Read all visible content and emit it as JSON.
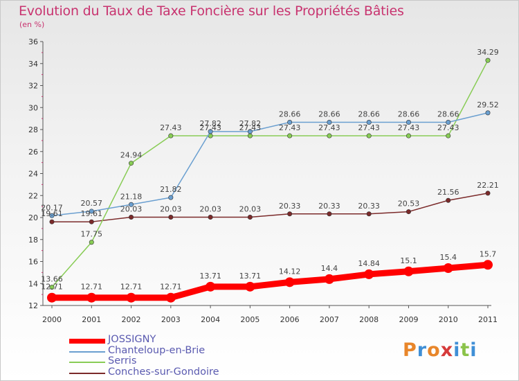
{
  "header": {
    "title": "Evolution du Taux de Taxe Foncière sur les Propriétés Bâties",
    "unit": "(en %)"
  },
  "logo": {
    "text": "Proxiti",
    "colors": [
      "#e8862a",
      "#3f8fd6",
      "#e8862a",
      "#d63a3a",
      "#3f8fd6",
      "#8bc34a",
      "#3f8fd6"
    ]
  },
  "chart_data": {
    "type": "line",
    "title": "Evolution du Taux de Taxe Foncière sur les Propriétés Bâties",
    "ylabel": "(en %)",
    "xlabel": "",
    "ylim": [
      12,
      36
    ],
    "yticks": [
      12,
      14,
      16,
      18,
      20,
      22,
      24,
      26,
      28,
      30,
      32,
      34,
      36
    ],
    "grid": false,
    "legend_position": "bottom-left",
    "x": [
      "2000",
      "2001",
      "2002",
      "2003",
      "2004",
      "2005",
      "2006",
      "2007",
      "2008",
      "2009",
      "2010",
      "2011"
    ],
    "series": [
      {
        "name": "JOSSIGNY",
        "color": "#ff0000",
        "thick": true,
        "values": [
          12.71,
          12.71,
          12.71,
          12.71,
          13.71,
          13.71,
          14.12,
          14.4,
          14.84,
          15.1,
          15.4,
          15.7
        ],
        "labels": [
          "12.71",
          "12.71",
          "12.71",
          "12.71",
          "13.71",
          "13.71",
          "14.12",
          "14.4",
          "14.84",
          "15.1",
          "15.4",
          "15.7"
        ]
      },
      {
        "name": "Chanteloup-en-Brie",
        "color": "#6a9fd0",
        "thick": false,
        "values": [
          20.17,
          20.57,
          21.18,
          21.82,
          27.82,
          27.82,
          28.66,
          28.66,
          28.66,
          28.66,
          28.66,
          29.52
        ],
        "labels": [
          "20.17",
          "20.57",
          "21.18",
          "21.82",
          "27.82",
          "27.82",
          "28.66",
          "28.66",
          "28.66",
          "28.66",
          "28.66",
          "29.52"
        ]
      },
      {
        "name": "Serris",
        "color": "#88cc55",
        "thick": false,
        "values": [
          13.66,
          17.75,
          24.94,
          27.43,
          27.43,
          27.43,
          27.43,
          27.43,
          27.43,
          27.43,
          27.43,
          34.29
        ],
        "labels": [
          "13.66",
          "17.75",
          "24.94",
          "27.43",
          "27.43",
          "27.43",
          "27.43",
          "27.43",
          "27.43",
          "27.43",
          "27.43",
          "34.29"
        ]
      },
      {
        "name": "Conches-sur-Gondoire",
        "color": "#7b2a2a",
        "thick": false,
        "values": [
          19.61,
          19.61,
          20.03,
          20.03,
          20.03,
          20.03,
          20.33,
          20.33,
          20.33,
          20.53,
          21.56,
          22.21
        ],
        "labels": [
          "19.61",
          "19.61",
          "20.03",
          "20.03",
          "20.03",
          "20.03",
          "20.33",
          "20.33",
          "20.33",
          "20.53",
          "21.56",
          "22.21"
        ]
      }
    ]
  }
}
